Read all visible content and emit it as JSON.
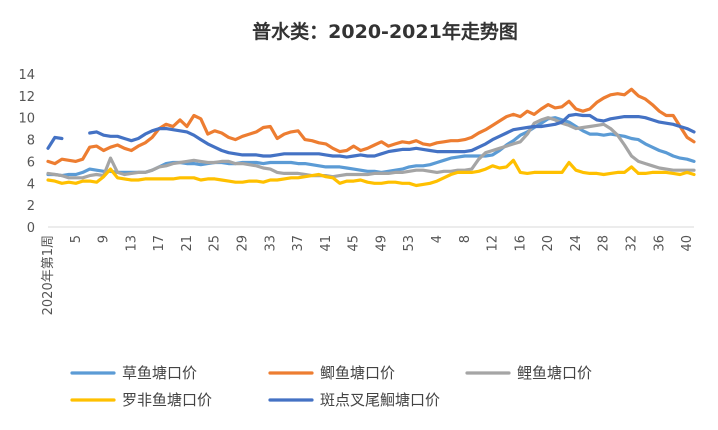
{
  "chart_data": {
    "type": "line",
    "title": "普水类：2020-2021年走势图",
    "xlabel": "",
    "ylabel": "",
    "ylim": [
      0,
      14
    ],
    "yticks": [
      0,
      2,
      4,
      6,
      8,
      10,
      12,
      14
    ],
    "grid": false,
    "legend_position": "bottom",
    "x_tick_labels": [
      "2020年第1周",
      "5",
      "9",
      "13",
      "17",
      "21",
      "25",
      "29",
      "33",
      "37",
      "41",
      "45",
      "49",
      "53",
      "4",
      "8",
      "12",
      "16",
      "20",
      "24",
      "28",
      "32",
      "36",
      "40"
    ],
    "series": [
      {
        "name": "草鱼塘口价",
        "color": "#5b9bd5",
        "values": [
          4.8,
          4.8,
          4.7,
          4.8,
          4.8,
          5.0,
          5.3,
          5.2,
          5.1,
          5.1,
          5.0,
          5.0,
          5.0,
          5.0,
          5.0,
          5.2,
          5.5,
          5.8,
          5.9,
          5.9,
          5.8,
          5.8,
          5.7,
          5.8,
          5.9,
          5.9,
          5.8,
          5.8,
          5.9,
          5.9,
          5.9,
          5.8,
          5.9,
          5.9,
          5.9,
          5.9,
          5.8,
          5.8,
          5.7,
          5.6,
          5.5,
          5.5,
          5.5,
          5.4,
          5.3,
          5.2,
          5.1,
          5.1,
          5.0,
          5.1,
          5.2,
          5.3,
          5.5,
          5.6,
          5.6,
          5.7,
          5.9,
          6.1,
          6.3,
          6.4,
          6.5,
          6.5,
          6.5,
          6.5,
          6.6,
          7.0,
          7.5,
          7.9,
          8.4,
          8.7,
          9.1,
          9.5,
          9.9,
          10.0,
          9.8,
          9.6,
          9.2,
          8.8,
          8.5,
          8.5,
          8.4,
          8.5,
          8.4,
          8.3,
          8.1,
          8.0,
          7.6,
          7.3,
          7.0,
          6.8,
          6.5,
          6.3,
          6.2,
          6.0
        ]
      },
      {
        "name": "鲫鱼塘口价",
        "color": "#ed7d31",
        "values": [
          6.0,
          5.8,
          6.2,
          6.1,
          6.0,
          6.2,
          7.3,
          7.4,
          7.0,
          7.3,
          7.5,
          7.2,
          7.0,
          7.4,
          7.7,
          8.2,
          9.0,
          9.4,
          9.2,
          9.8,
          9.2,
          10.2,
          9.9,
          8.5,
          8.8,
          8.6,
          8.2,
          8.0,
          8.3,
          8.5,
          8.7,
          9.1,
          9.2,
          8.1,
          8.5,
          8.7,
          8.8,
          8.0,
          7.9,
          7.7,
          7.6,
          7.2,
          6.9,
          7.0,
          7.4,
          7.0,
          7.2,
          7.5,
          7.8,
          7.4,
          7.6,
          7.8,
          7.7,
          7.9,
          7.6,
          7.5,
          7.7,
          7.8,
          7.9,
          7.9,
          8.0,
          8.2,
          8.6,
          8.9,
          9.3,
          9.7,
          10.1,
          10.3,
          10.1,
          10.6,
          10.3,
          10.8,
          11.2,
          10.9,
          11.0,
          11.5,
          10.8,
          10.6,
          10.8,
          11.4,
          11.8,
          12.1,
          12.2,
          12.1,
          12.6,
          12.0,
          11.7,
          11.2,
          10.6,
          10.2,
          10.2,
          9.2,
          8.2,
          7.8
        ]
      },
      {
        "name": "鲤鱼塘口价",
        "color": "#a5a5a5",
        "values": [
          4.9,
          4.8,
          4.7,
          4.5,
          4.5,
          4.5,
          4.7,
          4.8,
          4.7,
          6.3,
          5.0,
          4.8,
          4.9,
          5.0,
          5.0,
          5.2,
          5.5,
          5.6,
          5.8,
          5.9,
          6.0,
          6.1,
          6.0,
          5.9,
          5.9,
          6.0,
          6.0,
          5.8,
          5.8,
          5.7,
          5.6,
          5.4,
          5.3,
          5.0,
          4.9,
          4.9,
          4.9,
          4.8,
          4.7,
          4.7,
          4.7,
          4.6,
          4.7,
          4.8,
          4.8,
          4.8,
          4.8,
          4.9,
          4.9,
          4.9,
          5.0,
          5.0,
          5.1,
          5.2,
          5.2,
          5.1,
          5.0,
          5.1,
          5.1,
          5.2,
          5.2,
          5.3,
          6.2,
          6.8,
          7.0,
          7.2,
          7.4,
          7.6,
          7.8,
          8.5,
          9.5,
          9.8,
          10.0,
          9.8,
          9.5,
          9.3,
          9.0,
          9.1,
          9.2,
          9.3,
          9.4,
          9.0,
          8.4,
          7.5,
          6.5,
          6.0,
          5.8,
          5.6,
          5.4,
          5.3,
          5.2,
          5.2,
          5.2,
          5.2
        ]
      },
      {
        "name": "罗非鱼塘口价",
        "color": "#ffc000",
        "values": [
          4.3,
          4.2,
          4.0,
          4.1,
          4.0,
          4.2,
          4.2,
          4.1,
          4.6,
          5.3,
          4.5,
          4.4,
          4.3,
          4.3,
          4.4,
          4.4,
          4.4,
          4.4,
          4.4,
          4.5,
          4.5,
          4.5,
          4.3,
          4.4,
          4.4,
          4.3,
          4.2,
          4.1,
          4.1,
          4.2,
          4.2,
          4.1,
          4.3,
          4.3,
          4.4,
          4.5,
          4.5,
          4.6,
          4.7,
          4.8,
          4.6,
          4.5,
          4.0,
          4.2,
          4.2,
          4.3,
          4.1,
          4.0,
          4.0,
          4.1,
          4.1,
          4.0,
          4.0,
          3.8,
          3.9,
          4.0,
          4.2,
          4.5,
          4.8,
          5.0,
          5.0,
          5.0,
          5.1,
          5.3,
          5.6,
          5.4,
          5.5,
          6.1,
          5.0,
          4.9,
          5.0,
          5.0,
          5.0,
          5.0,
          5.0,
          5.9,
          5.2,
          5.0,
          4.9,
          4.9,
          4.8,
          4.9,
          5.0,
          5.0,
          5.5,
          4.9,
          4.9,
          5.0,
          5.0,
          5.0,
          4.9,
          4.8,
          5.0,
          4.8
        ]
      },
      {
        "name": "斑点叉尾鮰塘口价",
        "color": "#4472c4",
        "values": [
          7.2,
          8.2,
          8.1,
          null,
          null,
          null,
          8.6,
          8.7,
          8.4,
          8.3,
          8.3,
          8.1,
          7.9,
          8.1,
          8.5,
          8.8,
          9.0,
          9.0,
          8.9,
          8.8,
          8.7,
          8.4,
          8.0,
          7.6,
          7.3,
          7.0,
          6.8,
          6.7,
          6.6,
          6.6,
          6.6,
          6.5,
          6.5,
          6.6,
          6.7,
          6.7,
          6.7,
          6.7,
          6.7,
          6.7,
          6.6,
          6.5,
          6.5,
          6.4,
          6.5,
          6.6,
          6.5,
          6.5,
          6.7,
          6.9,
          7.0,
          7.1,
          7.1,
          7.2,
          7.1,
          7.0,
          6.9,
          6.9,
          6.9,
          6.9,
          6.9,
          7.0,
          7.3,
          7.6,
          8.0,
          8.3,
          8.6,
          8.9,
          9.0,
          9.1,
          9.2,
          9.2,
          9.3,
          9.4,
          9.6,
          10.2,
          10.3,
          10.2,
          10.2,
          9.8,
          9.7,
          9.9,
          10.0,
          10.1,
          10.1,
          10.1,
          10.0,
          9.8,
          9.6,
          9.5,
          9.4,
          9.2,
          9.0,
          8.7
        ]
      }
    ]
  }
}
